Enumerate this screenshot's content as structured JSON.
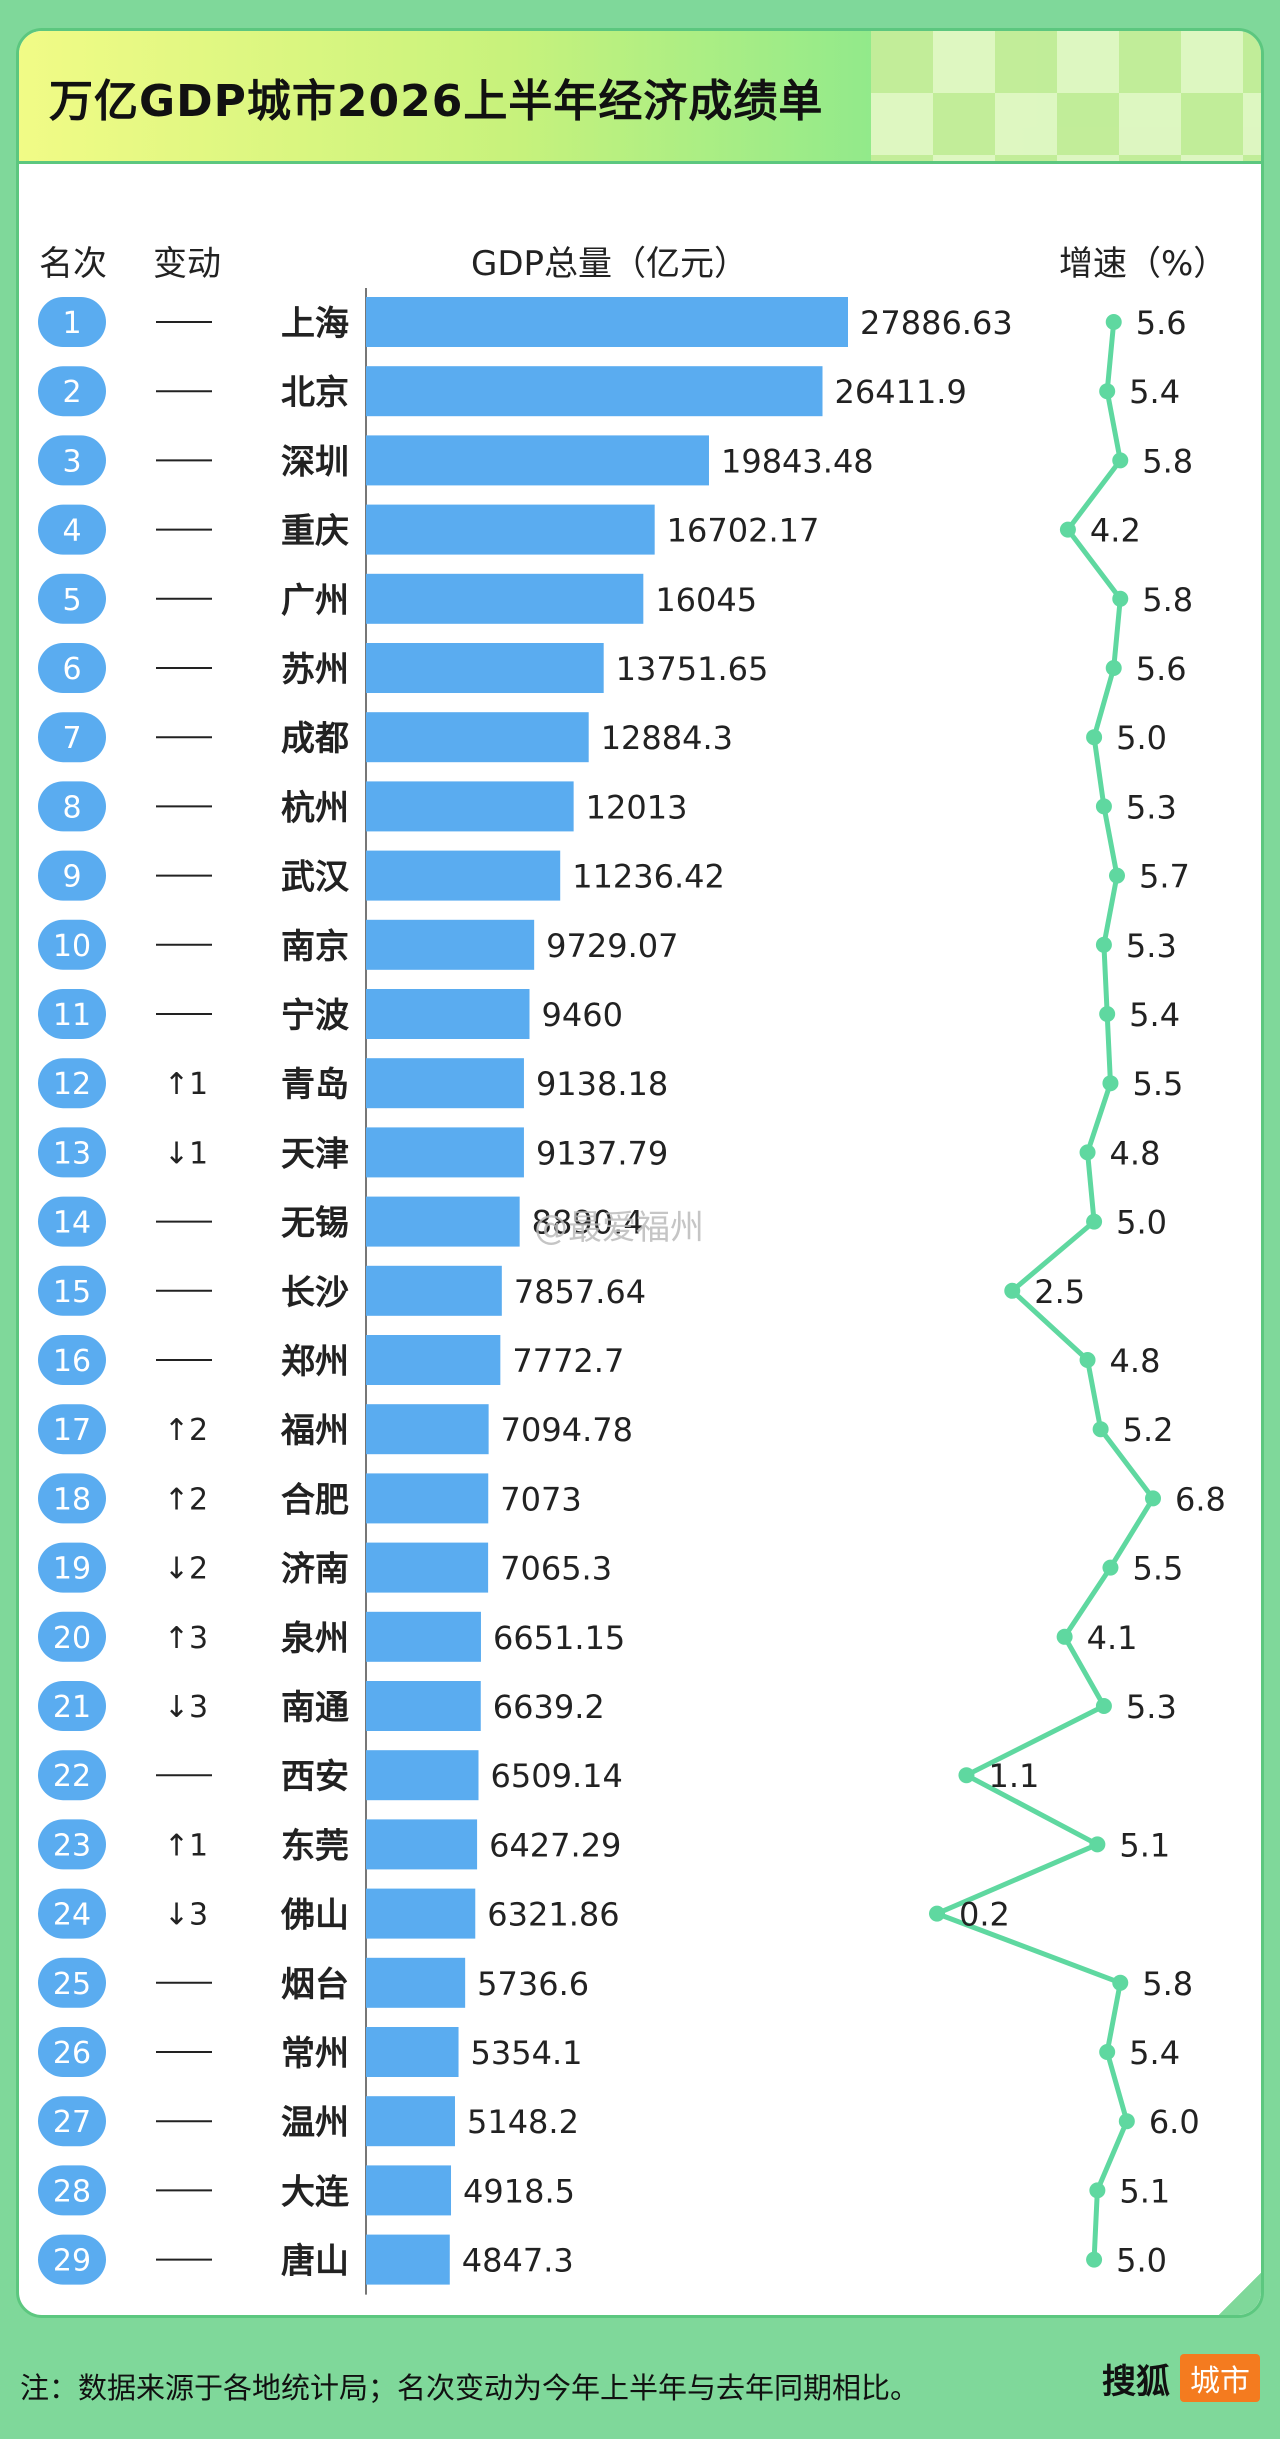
{
  "title": "万亿GDP城市2026上半年经济成绩单",
  "headers": {
    "rank": "名次",
    "change": "变动",
    "gdp": "GDP总量（亿元）",
    "growth": "增速（%）"
  },
  "footer": {
    "note": "注：数据来源于各地统计局；名次变动为今年上半年与去年同期相比。",
    "brand_name": "搜狐",
    "brand_tag": "城市"
  },
  "watermark": "@最爱福州",
  "colors": {
    "bar": "#5aacf0",
    "rank_badge": "#5aacf0",
    "line": "#5fd8a0",
    "frame": "#7fd89a"
  },
  "chart_data": {
    "type": "bar",
    "categories": [
      "上海",
      "北京",
      "深圳",
      "重庆",
      "广州",
      "苏州",
      "成都",
      "杭州",
      "武汉",
      "南京",
      "宁波",
      "青岛",
      "天津",
      "无锡",
      "长沙",
      "郑州",
      "福州",
      "合肥",
      "济南",
      "泉州",
      "南通",
      "西安",
      "东莞",
      "佛山",
      "烟台",
      "常州",
      "温州",
      "大连",
      "唐山"
    ],
    "ranks": [
      "1",
      "2",
      "3",
      "4",
      "5",
      "6",
      "7",
      "8",
      "9",
      "10",
      "11",
      "12",
      "13",
      "14",
      "15",
      "16",
      "17",
      "18",
      "19",
      "20",
      "21",
      "22",
      "23",
      "24",
      "25",
      "26",
      "27",
      "28",
      "29"
    ],
    "changes": [
      "—",
      "—",
      "—",
      "—",
      "—",
      "—",
      "—",
      "—",
      "—",
      "—",
      "—",
      "↑1",
      "↓1",
      "—",
      "—",
      "—",
      "↑2",
      "↑2",
      "↓2",
      "↑3",
      "↓3",
      "—",
      "↑1",
      "↓3",
      "—",
      "—",
      "—",
      "—",
      "—"
    ],
    "gdp_labels": [
      "27886.63",
      "26411.9",
      "19843.48",
      "16702.17",
      "16045",
      "13751.65",
      "12884.3",
      "12013",
      "11236.42",
      "9729.07",
      "9460",
      "9138.18",
      "9137.79",
      "8890.4",
      "7857.64",
      "7772.7",
      "7094.78",
      "7073",
      "7065.3",
      "6651.15",
      "6639.2",
      "6509.14",
      "6427.29",
      "6321.86",
      "5736.6",
      "5354.1",
      "5148.2",
      "4918.5",
      "4847.3"
    ],
    "gdp": [
      27886.63,
      26411.9,
      19843.48,
      16702.17,
      16045,
      13751.65,
      12884.3,
      12013,
      11236.42,
      9729.07,
      9460,
      9138.18,
      9137.79,
      8890.4,
      7857.64,
      7772.7,
      7094.78,
      7073,
      7065.3,
      6651.15,
      6639.2,
      6509.14,
      6427.29,
      6321.86,
      5736.6,
      5354.1,
      5148.2,
      4918.5,
      4847.3
    ],
    "growth_labels": [
      "5.6",
      "5.4",
      "5.8",
      "4.2",
      "5.8",
      "5.6",
      "5.0",
      "5.3",
      "5.7",
      "5.3",
      "5.4",
      "5.5",
      "4.8",
      "5.0",
      "2.5",
      "4.8",
      "5.2",
      "6.8",
      "5.5",
      "4.1",
      "5.3",
      "1.1",
      "5.1",
      "0.2",
      "5.8",
      "5.4",
      "6.0",
      "5.1",
      "5.0"
    ],
    "growth": [
      5.6,
      5.4,
      5.8,
      4.2,
      5.8,
      5.6,
      5.0,
      5.3,
      5.7,
      5.3,
      5.4,
      5.5,
      4.8,
      5.0,
      2.5,
      4.8,
      5.2,
      6.8,
      5.5,
      4.1,
      5.3,
      1.1,
      5.1,
      0.2,
      5.8,
      5.4,
      6.0,
      5.1,
      5.0
    ]
  }
}
